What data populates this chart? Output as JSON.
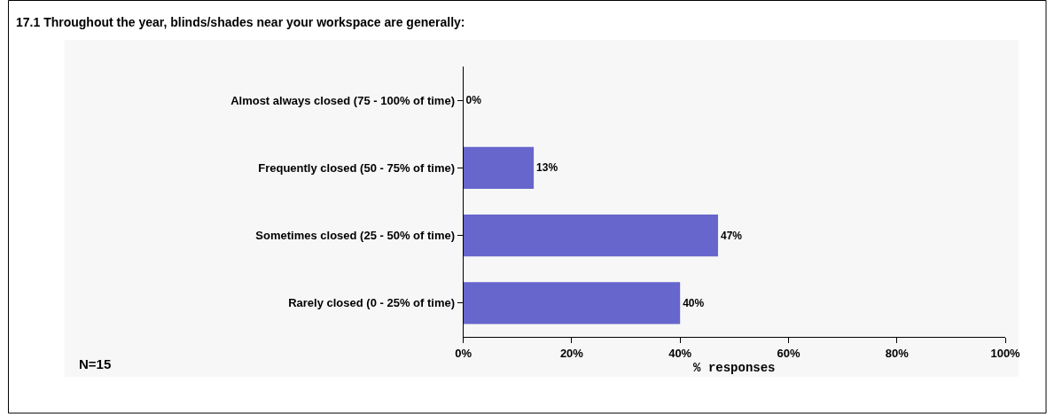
{
  "chart_data": {
    "type": "bar",
    "orientation": "horizontal",
    "title": "17.1 Throughout the year, blinds/shades near your workspace are generally:",
    "categories": [
      "Almost always closed (75 - 100% of time)",
      "Frequently closed (50 - 75% of time)",
      "Sometimes closed (25 - 50% of time)",
      "Rarely closed (0 - 25% of time)"
    ],
    "values": [
      0,
      13,
      47,
      40
    ],
    "value_labels": [
      "0%",
      "13%",
      "47%",
      "40%"
    ],
    "color": "#6666cc",
    "xlim": [
      0,
      100
    ],
    "xticks": [
      {
        "value": 0,
        "label": "0%"
      },
      {
        "value": 20,
        "label": "20%"
      },
      {
        "value": 40,
        "label": "40%"
      },
      {
        "value": 60,
        "label": "60%"
      },
      {
        "value": 80,
        "label": "80%"
      },
      {
        "value": 100,
        "label": "100%"
      }
    ],
    "xlabel": "% responses",
    "annotations": [
      "N=15"
    ],
    "grid": false,
    "legend": false
  }
}
